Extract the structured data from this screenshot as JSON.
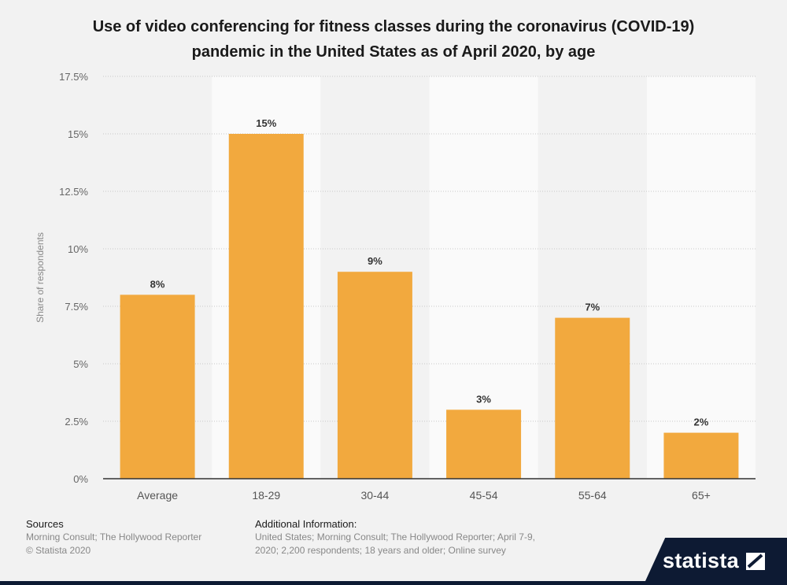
{
  "chart_data": {
    "type": "bar",
    "title": "Use of video conferencing for fitness classes during the coronavirus (COVID-19) pandemic in the United States as of April 2020, by age",
    "categories": [
      "Average",
      "18-29",
      "30-44",
      "45-54",
      "55-64",
      "65+"
    ],
    "values": [
      8,
      15,
      9,
      3,
      7,
      2
    ],
    "data_labels": [
      "8%",
      "15%",
      "9%",
      "3%",
      "7%",
      "2%"
    ],
    "ylabel": "Share of respondents",
    "ylim": [
      0,
      17.5
    ],
    "yticks": [
      0,
      2.5,
      5,
      7.5,
      10,
      12.5,
      15,
      17.5
    ],
    "ytick_labels": [
      "0%",
      "2.5%",
      "5%",
      "7.5%",
      "10%",
      "12.5%",
      "15%",
      "17.5%"
    ],
    "grid": true,
    "bar_color": "#f2a93e"
  },
  "footer": {
    "sources_heading": "Sources",
    "sources_line1": "Morning Consult; The Hollywood Reporter",
    "sources_line2": "© Statista 2020",
    "info_heading": "Additional Information:",
    "info_line1": "United States; Morning Consult; The Hollywood Reporter; April 7-9,",
    "info_line2": "2020; 2,200 respondents; 18 years and older; Online survey"
  },
  "brand": {
    "logo_text": "statista"
  }
}
